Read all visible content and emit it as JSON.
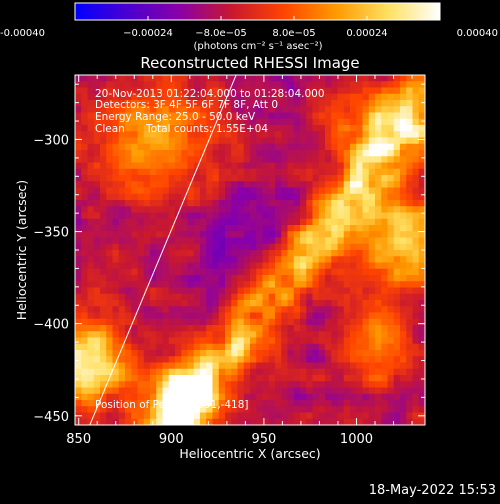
{
  "chart_data": {
    "type": "heatmap",
    "title": "Reconstructed RHESSI Image",
    "xlabel": "Heliocentric X (arcsec)",
    "ylabel": "Heliocentric Y (arcsec)",
    "xlim": [
      848,
      1037
    ],
    "ylim": [
      -455,
      -265
    ],
    "x_ticks": [
      850,
      900,
      950,
      1000
    ],
    "y_ticks": [
      -300,
      -350,
      -400,
      -450
    ],
    "x_tick_labels": [
      "850",
      "900",
      "950",
      "1000"
    ],
    "y_tick_labels": [
      "−300",
      "−350",
      "−400",
      "−450"
    ],
    "colorbar": {
      "range": [
        -0.0004,
        0.0004
      ],
      "ticks": [
        -0.0004,
        -0.00024,
        -8e-05,
        8e-05,
        0.00024,
        0.0004
      ],
      "tick_labels": [
        "-0.00040",
        "−0.00024",
        "−8.0e−05",
        "8.0e−05",
        "0.00024",
        "0.00040"
      ],
      "unit_label": "(photons cm⁻² s⁻¹ asec⁻²)",
      "colormap": [
        "#0000ff",
        "#4a00d0",
        "#8a00a8",
        "#c81830",
        "#ff4400",
        "#ff9900",
        "#ffe060",
        "#ffffff"
      ]
    },
    "annotations": {
      "time_range": "20-Nov-2013 01:22:04.000 to 01:28:04.000",
      "detectors": "Detectors: 3F 4F 5F 6F 7F 8F, Att 0",
      "energy": "Energy Range: 25.0 - 50.0 keV",
      "algorithm": "Clean",
      "total_counts": "Total counts: 1.55E+04",
      "peak": "Position of Peak = [851,-418]"
    },
    "limb_line": [
      [
        856,
        -455
      ],
      [
        935,
        -265
      ]
    ],
    "peak_position": [
      851,
      -418
    ],
    "footer_date": "18-May-2022 15:53"
  }
}
